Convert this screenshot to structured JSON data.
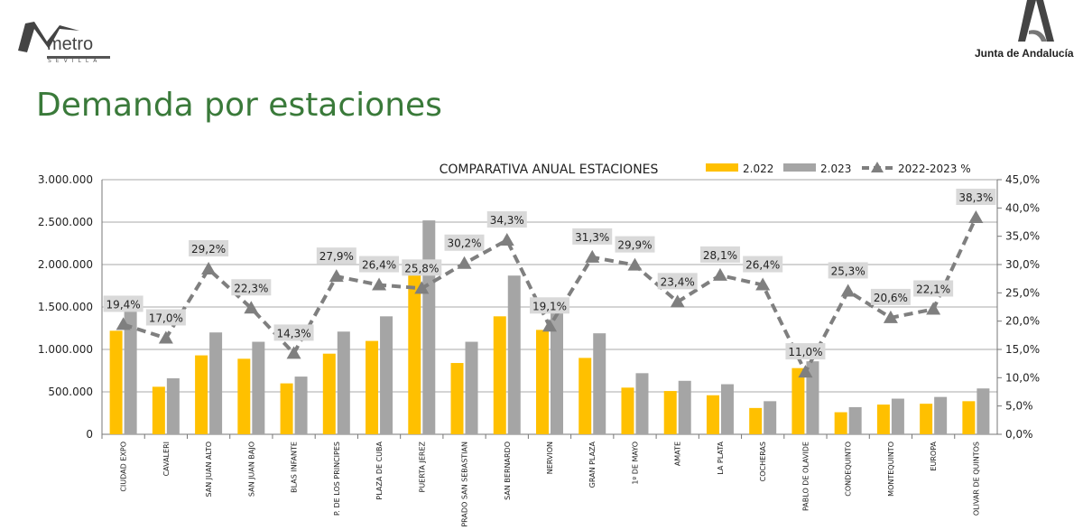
{
  "header": {
    "metro_logo_text": "metro",
    "metro_logo_sub": "SEVILLA",
    "junta_logo_text": "Junta de Andalucía",
    "page_title": "Demanda por estaciones"
  },
  "chart_data": {
    "type": "bar",
    "title": "COMPARATIVA ANUAL  ESTACIONES",
    "categories": [
      "CIUDAD EXPO",
      "CAVALERI",
      "SAN JUAN ALTO",
      "SAN JUAN BAJO",
      "BLAS INFANTE",
      "P. DE LOS PRINCIPES",
      "PLAZA DE CUBA",
      "PUERTA JEREZ",
      "PRADO SAN SEBASTIAN",
      "SAN BERNARDO",
      "NERVION",
      "GRAN PLAZA",
      "1º DE MAYO",
      "AMATE",
      "LA PLATA",
      "COCHERAS",
      "PABLO DE OLAVIDE",
      "CONDEQUINTO",
      "MONTEQUINTO",
      "EUROPA",
      "OLIVAR DE QUINTOS"
    ],
    "series": [
      {
        "name": "2.022",
        "type": "bar",
        "axis": "left",
        "color": "#FFC000",
        "values": [
          1220000,
          560000,
          930000,
          890000,
          600000,
          950000,
          1100000,
          2000000,
          840000,
          1390000,
          1230000,
          900000,
          550000,
          510000,
          460000,
          310000,
          780000,
          260000,
          350000,
          360000,
          390000
        ]
      },
      {
        "name": "2.023",
        "type": "bar",
        "axis": "left",
        "color": "#A5A5A5",
        "values": [
          1460000,
          660000,
          1200000,
          1090000,
          680000,
          1210000,
          1390000,
          2520000,
          1090000,
          1870000,
          1470000,
          1190000,
          720000,
          630000,
          590000,
          390000,
          860000,
          320000,
          420000,
          440000,
          540000
        ]
      },
      {
        "name": "2022-2023 %",
        "type": "line",
        "axis": "right",
        "color": "#7F7F7F",
        "style": "dashed",
        "marker": "triangle",
        "values": [
          19.4,
          17.0,
          29.2,
          22.3,
          14.3,
          27.9,
          26.4,
          25.8,
          30.2,
          34.3,
          19.1,
          31.3,
          29.9,
          23.4,
          28.1,
          26.4,
          11.0,
          25.3,
          20.6,
          22.1,
          38.3
        ],
        "labels": [
          "19,4%",
          "17,0%",
          "29,2%",
          "22,3%",
          "14,3%",
          "27,9%",
          "26,4%",
          "25,8%",
          "30,2%",
          "34,3%",
          "19,1%",
          "31,3%",
          "29,9%",
          "23,4%",
          "28,1%",
          "26,4%",
          "11,0%",
          "25,3%",
          "20,6%",
          "22,1%",
          "38,3%"
        ]
      }
    ],
    "y_left": {
      "range": [
        0,
        3000000
      ],
      "ticks": [
        "0",
        "500.000",
        "1.000.000",
        "1.500.000",
        "2.000.000",
        "2.500.000",
        "3.000.000"
      ]
    },
    "y_right": {
      "range": [
        0,
        45
      ],
      "ticks": [
        "0,0%",
        "5,0%",
        "10,0%",
        "15,0%",
        "20,0%",
        "25,0%",
        "30,0%",
        "35,0%",
        "40,0%",
        "45,0%"
      ]
    },
    "grid": true,
    "legend_position": "top-right"
  }
}
